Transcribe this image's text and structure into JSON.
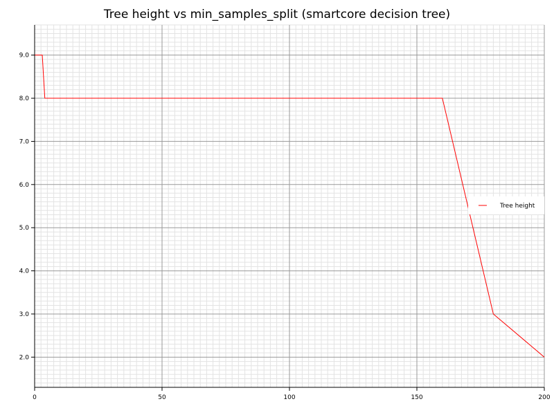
{
  "chart_data": {
    "type": "line",
    "title": "Tree height vs min_samples_split (smartcore decision tree)",
    "xlim": [
      0,
      200
    ],
    "ylim": [
      1.3,
      9.7
    ],
    "x_ticks": [
      0,
      50,
      100,
      150,
      200
    ],
    "x_tick_labels": [
      "0",
      "50",
      "100",
      "150",
      "200"
    ],
    "y_ticks": [
      2,
      3,
      4,
      5,
      6,
      7,
      8,
      9
    ],
    "y_tick_labels": [
      "2.0",
      "3.0",
      "4.0",
      "5.0",
      "6.0",
      "7.0",
      "8.0",
      "9.0"
    ],
    "grid": true,
    "legend_position": "right",
    "series": [
      {
        "name": "Tree height",
        "color": "#ff0000",
        "x": [
          0,
          3,
          4,
          160,
          180,
          200
        ],
        "y": [
          9,
          9,
          8,
          8,
          3,
          2
        ]
      }
    ]
  }
}
